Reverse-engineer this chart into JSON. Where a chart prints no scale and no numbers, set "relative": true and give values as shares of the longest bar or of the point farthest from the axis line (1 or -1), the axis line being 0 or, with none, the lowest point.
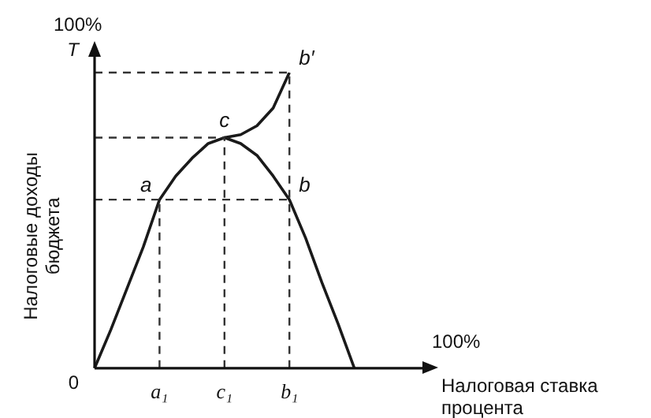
{
  "chart_data": {
    "type": "line",
    "relative": true,
    "xlabel": "Налоговая ставка процента",
    "ylabel": "Налоговые доходы бюджета",
    "categories": [
      null,
      null,
      null,
      null,
      "a₁",
      null,
      null,
      null,
      "c₁",
      null,
      null,
      null,
      "b₁",
      null,
      null,
      null,
      null,
      null,
      null,
      null,
      null
    ],
    "series": [
      {
        "color": "#1a1a1a",
        "values": [
          0,
          0.13,
          0.27,
          0.41,
          0.57,
          0.65,
          0.71,
          0.76,
          0.78,
          0.76,
          0.72,
          0.65,
          0.57,
          0.44,
          0.29,
          0.15,
          0,
          null,
          null,
          null,
          null
        ]
      },
      {
        "color": "#1a1a1a",
        "values": [
          null,
          null,
          null,
          null,
          null,
          null,
          null,
          null,
          0.78,
          0.79,
          0.82,
          0.88,
          1,
          null,
          null,
          null,
          null,
          null,
          null,
          null,
          null
        ]
      }
    ],
    "ref_lines": [
      {
        "axis": "y",
        "value": 1,
        "line_style": "dashed"
      },
      {
        "axis": "y",
        "value": 0.78,
        "line_style": "dashed"
      },
      {
        "axis": "y",
        "value": 0.57,
        "line_style": "dashed"
      },
      {
        "axis": "x",
        "value": "a₁",
        "line_style": "dashed"
      },
      {
        "axis": "x",
        "value": "c₁",
        "line_style": "dashed"
      },
      {
        "axis": "x",
        "value": "b₁",
        "line_style": "dashed"
      }
    ],
    "annotations": [
      {
        "text": "a",
        "x": "a₁",
        "y": 0.57
      },
      {
        "text": "c",
        "x": "c₁",
        "y": 0.78
      },
      {
        "text": "b",
        "x": "b₁",
        "y": 0.57
      },
      {
        "text": "b′",
        "x": "b₁",
        "y": 1
      },
      "100%",
      "T",
      "0",
      "100%"
    ],
    "marker": "none",
    "line_style": "solid",
    "grid": false,
    "legend": false
  }
}
